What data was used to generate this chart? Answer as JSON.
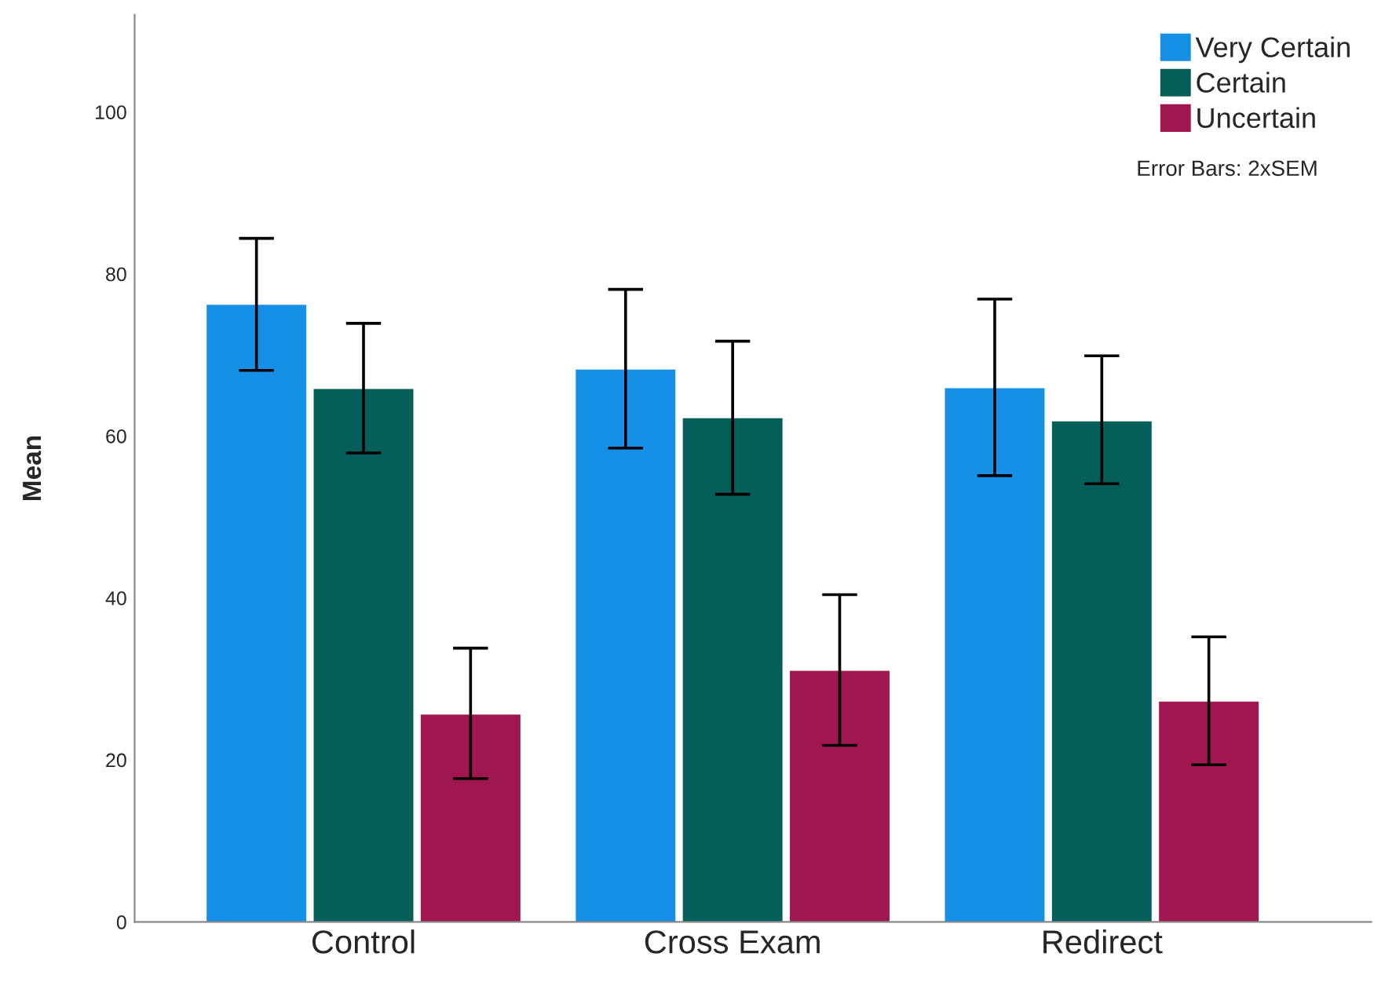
{
  "chart_data": {
    "type": "bar",
    "ylabel": "Mean",
    "categories": [
      "Control",
      "Cross Exam",
      "Redirect"
    ],
    "series": [
      {
        "name": "Very Certain",
        "color": "#1690e6",
        "values": [
          76.2,
          68.2,
          65.9
        ],
        "errors": [
          [
            68.1,
            84.4
          ],
          [
            58.5,
            78.1
          ],
          [
            55.1,
            76.9
          ]
        ]
      },
      {
        "name": "Certain",
        "color": "#045e5a",
        "values": [
          65.8,
          62.2,
          61.8
        ],
        "errors": [
          [
            57.9,
            73.9
          ],
          [
            52.8,
            71.7
          ],
          [
            54.1,
            69.9
          ]
        ]
      },
      {
        "name": "Uncertain",
        "color": "#a0174f",
        "values": [
          25.6,
          31.0,
          27.2
        ],
        "errors": [
          [
            17.7,
            33.8
          ],
          [
            21.8,
            40.4
          ],
          [
            19.4,
            35.2
          ]
        ]
      }
    ],
    "ylim": [
      0,
      112
    ],
    "yticks": [
      0,
      20,
      40,
      60,
      80,
      100
    ],
    "grid": false,
    "legend": "top right",
    "annotations": [
      "Error Bars: 2xSEM"
    ]
  }
}
